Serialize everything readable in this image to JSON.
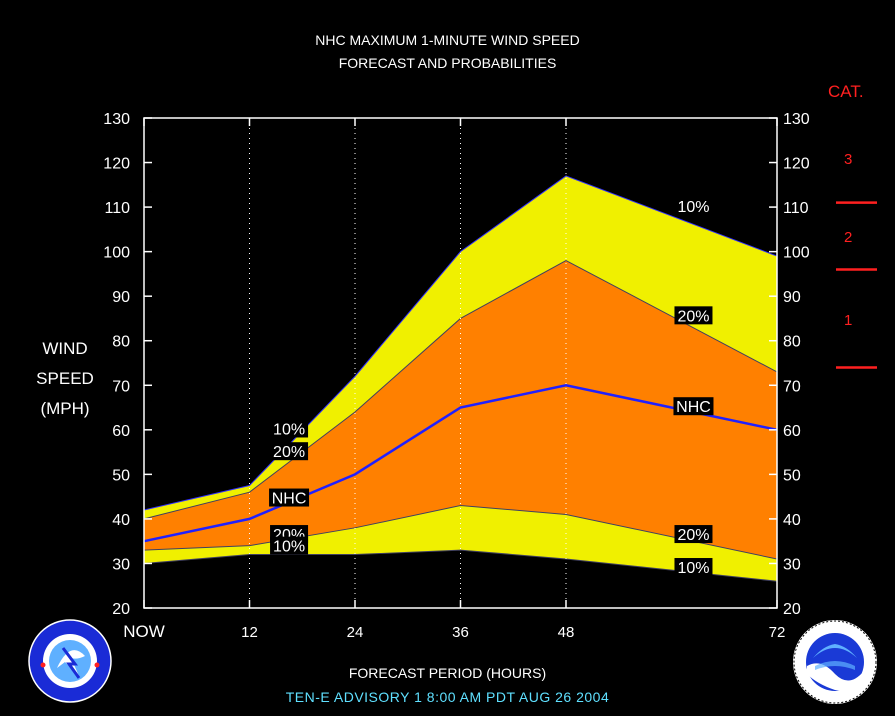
{
  "header": {
    "title_line1": "NHC MAXIMUM 1-MINUTE WIND SPEED",
    "title_line2": "FORECAST AND PROBABILITIES"
  },
  "axis": {
    "ylabel_lines": [
      "WIND",
      "SPEED",
      "(MPH)"
    ],
    "xlabel": "FORECAST PERIOD (HOURS)",
    "category_title": "CAT."
  },
  "footer": {
    "advisory": "TEN-E   ADVISORY  1  8:00  AM  PDT  AUG 26  2004"
  },
  "colors": {
    "background": "#000000",
    "plot_bg": "#000000",
    "outer_band": "#f0f000",
    "inner_band": "#ff8000",
    "nhc_line": "#2020ff",
    "category_marks": "#ff2020",
    "advisory_text": "#5fe0ff"
  },
  "logos": {
    "left": "nws-logo",
    "right": "noaa-logo"
  },
  "chart_data": {
    "type": "area",
    "title": "NHC MAXIMUM 1-MINUTE WIND SPEED FORECAST AND PROBABILITIES",
    "xlabel": "FORECAST PERIOD (HOURS)",
    "ylabel": "WIND SPEED (MPH)",
    "xlim": [
      0,
      72
    ],
    "ylim": [
      20,
      130
    ],
    "x_ticks": [
      0,
      12,
      24,
      36,
      48,
      72
    ],
    "x_tick_labels": [
      "NOW",
      "12",
      "24",
      "36",
      "48",
      "72"
    ],
    "y_ticks": [
      20,
      30,
      40,
      50,
      60,
      70,
      80,
      90,
      100,
      110,
      120,
      130
    ],
    "grid": "vertical dotted",
    "x": [
      0,
      12,
      24,
      36,
      48,
      72
    ],
    "series": [
      {
        "name": "10%",
        "values": [
          42,
          47.5,
          72,
          100,
          117,
          99
        ]
      },
      {
        "name": "20%",
        "values": [
          40,
          46,
          64,
          85,
          98,
          73
        ]
      },
      {
        "name": "NHC",
        "values": [
          35,
          40,
          50,
          65,
          70,
          60
        ]
      },
      {
        "name": "20%",
        "values": [
          33,
          34,
          38,
          43,
          41,
          31
        ]
      },
      {
        "name": "10%",
        "values": [
          30,
          32,
          32,
          33,
          31,
          26
        ]
      }
    ],
    "labels": [
      {
        "text": "10%",
        "x": 16.5,
        "y": 60.3
      },
      {
        "text": "20%",
        "x": 16.5,
        "y": 55.2
      },
      {
        "text": "NHC",
        "x": 16.5,
        "y": 44.8
      },
      {
        "text": "20%",
        "x": 16.5,
        "y": 36.6
      },
      {
        "text": "10%",
        "x": 16.5,
        "y": 34.0
      },
      {
        "text": "10%",
        "x": 62.5,
        "y": 110.2
      },
      {
        "text": "20%",
        "x": 62.5,
        "y": 85.7
      },
      {
        "text": "NHC",
        "x": 62.5,
        "y": 65.3
      },
      {
        "text": "20%",
        "x": 62.5,
        "y": 36.6
      },
      {
        "text": "10%",
        "x": 62.5,
        "y": 29.2
      }
    ],
    "categories": [
      {
        "label": "1",
        "low": 74,
        "high": 95
      },
      {
        "label": "2",
        "low": 96,
        "high": 110
      },
      {
        "label": "3",
        "low": 111,
        "high": 130
      }
    ],
    "category_thresholds": [
      74,
      96,
      111
    ]
  }
}
